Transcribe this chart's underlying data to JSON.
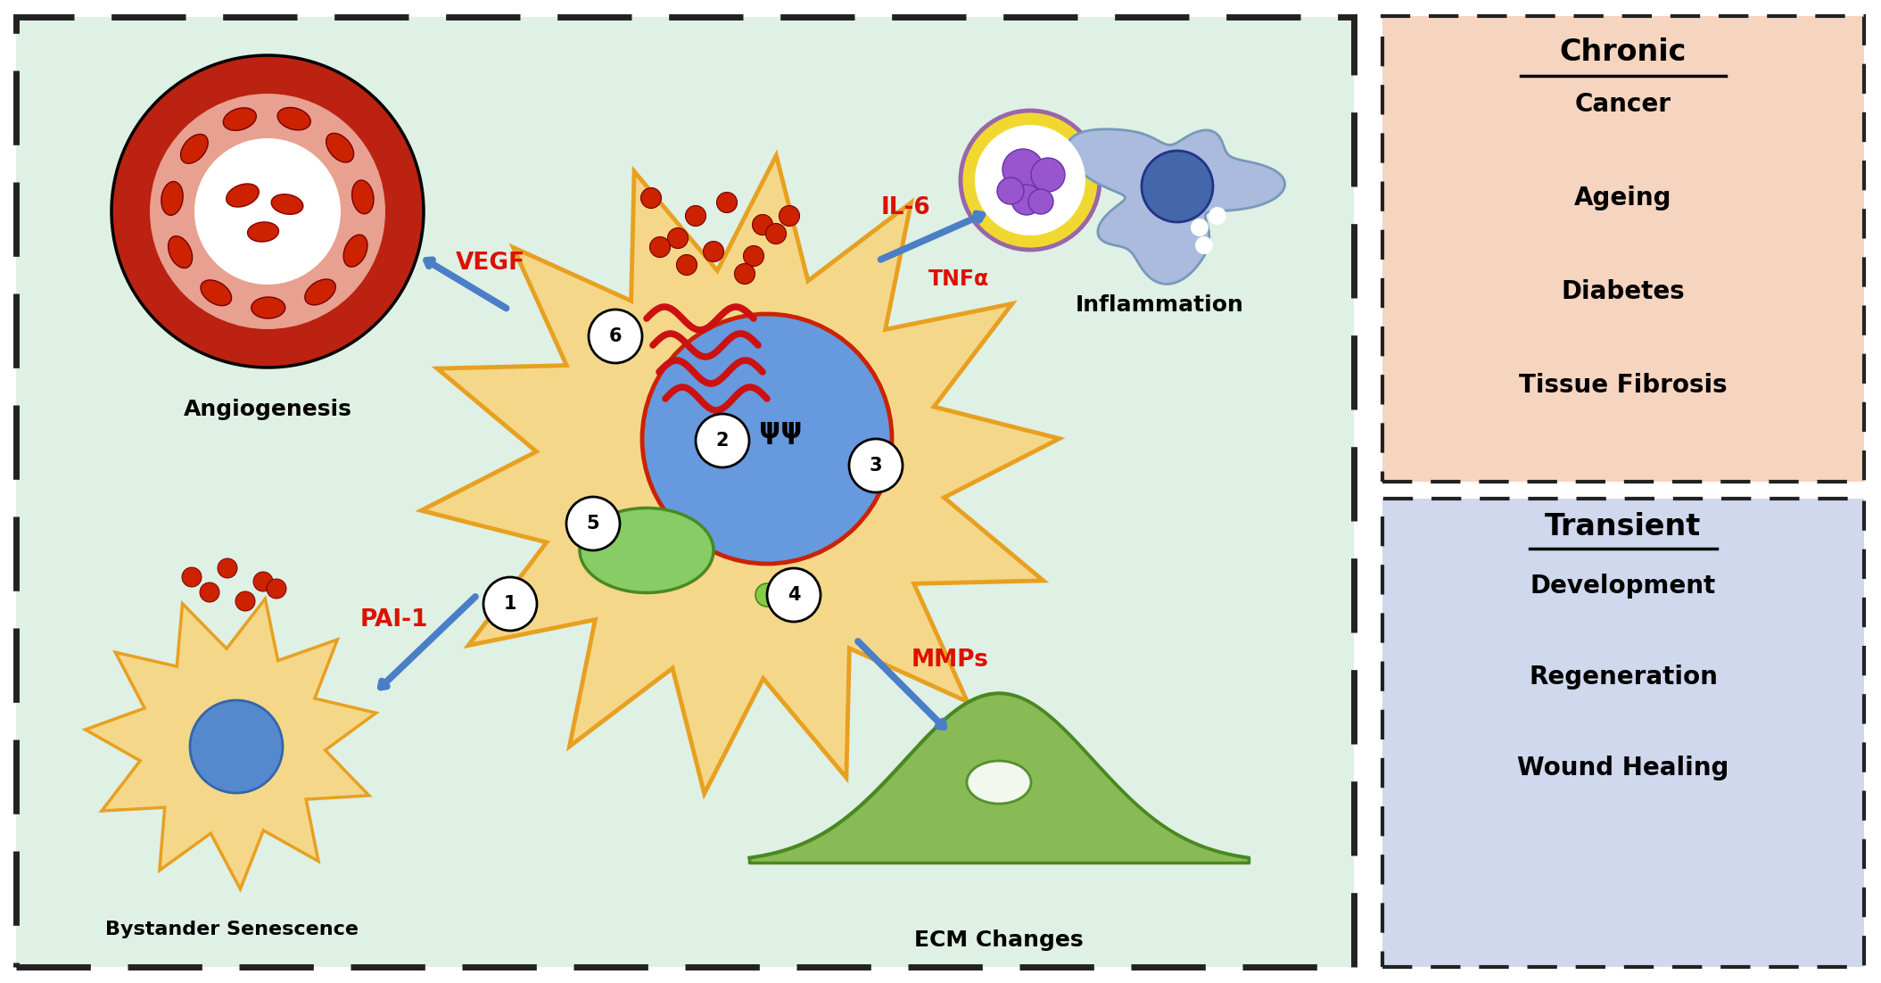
{
  "bg_main": "#dff0e4",
  "bg_chronic": "#f5d5c0",
  "bg_transient": "#cfd8ec",
  "chronic_title": "Chronic",
  "chronic_items": [
    "Cancer",
    "Ageing",
    "Diabetes",
    "Tissue Fibrosis"
  ],
  "transient_title": "Transient",
  "transient_items": [
    "Development",
    "Regeneration",
    "Wound Healing"
  ],
  "label_angiogenesis": "Angiogenesis",
  "label_bystander": "Bystander Senescence",
  "label_ecm": "ECM Changes",
  "label_inflammation": "Inflammation",
  "label_vegf": "VEGF",
  "label_pai": "PAI-1",
  "label_mmps": "MMPs",
  "label_il6": "IL-6",
  "label_tnf": "TNFα",
  "arrow_color": "#4a7ec7",
  "red_color": "#dd1100",
  "cell_fill": "#f5d78a",
  "cell_edge": "#e8a020",
  "nucleus_fill": "#6699dd",
  "nucleus_edge": "#cc2200"
}
